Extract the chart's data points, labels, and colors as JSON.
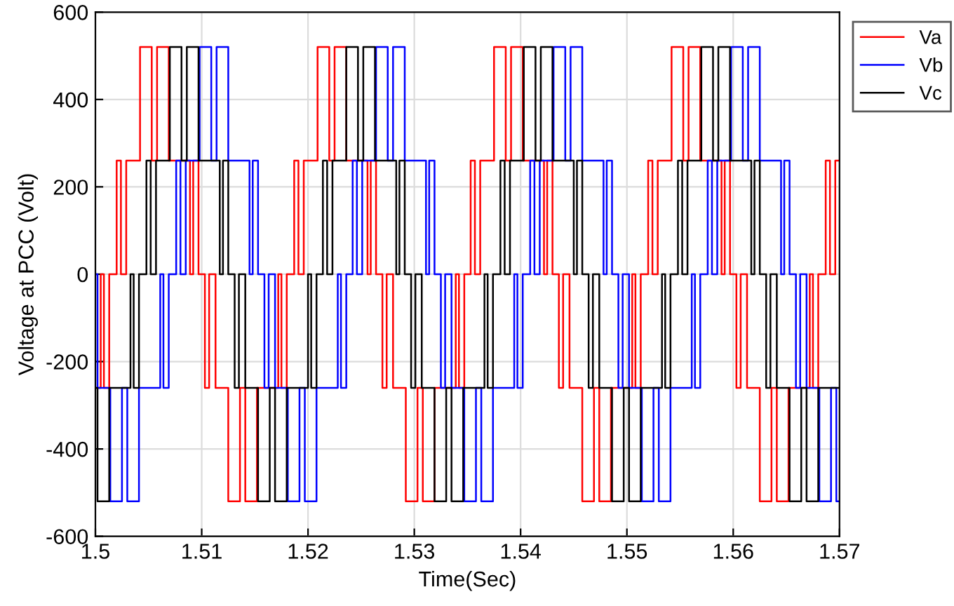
{
  "chart_data": {
    "type": "step",
    "xlabel": "Time(Sec)",
    "ylabel": "Voltage at PCC (Volt)",
    "xlim": [
      1.5,
      1.57
    ],
    "xticks": [
      1.5,
      1.51,
      1.52,
      1.53,
      1.54,
      1.55,
      1.56,
      1.57
    ],
    "ylim": [
      -600,
      600
    ],
    "yticks": [
      -600,
      -400,
      -200,
      0,
      200,
      400,
      600
    ],
    "grid": true,
    "legend": "top right",
    "line_style": "solid",
    "marker": "none",
    "series": [
      {
        "name": "Va",
        "color": "#ff0000",
        "x": [
          1.5,
          1.5005,
          1.5008,
          1.5013,
          1.502,
          1.5024,
          1.5029,
          1.5042,
          1.5053,
          1.5058,
          1.5069,
          1.5089,
          1.5092,
          1.5097,
          1.5103,
          1.5107,
          1.5113,
          1.5125,
          1.5136,
          1.5141,
          1.5152,
          1.5172,
          1.5175,
          1.518,
          1.5187,
          1.5191,
          1.5196,
          1.5209,
          1.522,
          1.5225,
          1.5236,
          1.5256,
          1.5259,
          1.5264,
          1.527,
          1.5274,
          1.528,
          1.5292,
          1.5303,
          1.5308,
          1.5319,
          1.5339,
          1.5342,
          1.5347,
          1.5353,
          1.5357,
          1.5362,
          1.5375,
          1.5386,
          1.5391,
          1.5402,
          1.5422,
          1.5425,
          1.543,
          1.5436,
          1.544,
          1.5446,
          1.5458,
          1.5469,
          1.5474,
          1.5485,
          1.5505,
          1.5508,
          1.5513,
          1.552,
          1.5524,
          1.5529,
          1.5542,
          1.5553,
          1.5558,
          1.5569,
          1.5589,
          1.5592,
          1.5597,
          1.5603,
          1.5607,
          1.5613,
          1.5625,
          1.5636,
          1.5641,
          1.5652,
          1.5672,
          1.5675,
          1.568,
          1.5687,
          1.5691,
          1.5696,
          1.57
        ],
        "values": [
          -260,
          0,
          -260,
          0,
          260,
          0,
          260,
          520,
          260,
          520,
          260,
          0,
          260,
          0,
          -260,
          0,
          -260,
          -520,
          -260,
          -520,
          -260,
          0,
          -260,
          0,
          260,
          0,
          260,
          520,
          260,
          520,
          260,
          0,
          260,
          0,
          -260,
          0,
          -260,
          -520,
          -260,
          -520,
          -260,
          0,
          -260,
          0,
          260,
          0,
          260,
          520,
          260,
          520,
          260,
          0,
          260,
          0,
          -260,
          0,
          -260,
          -520,
          -260,
          -520,
          -260,
          0,
          -260,
          0,
          260,
          0,
          260,
          520,
          260,
          520,
          260,
          0,
          260,
          0,
          -260,
          0,
          -260,
          -520,
          -260,
          -520,
          -260,
          0,
          -260,
          0,
          260,
          0,
          260,
          260
        ]
      },
      {
        "name": "Vb",
        "color": "#0000ff",
        "x": [
          1.5,
          1.5002,
          1.5014,
          1.5025,
          1.503,
          1.5041,
          1.5061,
          1.5064,
          1.5069,
          1.5076,
          1.508,
          1.5085,
          1.5098,
          1.5109,
          1.5114,
          1.5125,
          1.5145,
          1.5148,
          1.5153,
          1.5159,
          1.5163,
          1.5169,
          1.5181,
          1.5192,
          1.5197,
          1.5208,
          1.5228,
          1.5231,
          1.5236,
          1.5242,
          1.5246,
          1.5251,
          1.5264,
          1.5275,
          1.528,
          1.5291,
          1.5311,
          1.5314,
          1.5319,
          1.5325,
          1.5329,
          1.5335,
          1.5347,
          1.5358,
          1.5363,
          1.5374,
          1.5394,
          1.5397,
          1.5402,
          1.5409,
          1.5413,
          1.5418,
          1.5431,
          1.5442,
          1.5447,
          1.5458,
          1.5478,
          1.5481,
          1.5486,
          1.5492,
          1.5496,
          1.5502,
          1.5514,
          1.5525,
          1.553,
          1.5541,
          1.5561,
          1.5564,
          1.5569,
          1.5576,
          1.558,
          1.5585,
          1.5598,
          1.5609,
          1.5614,
          1.5625,
          1.5645,
          1.5648,
          1.5653,
          1.5659,
          1.5663,
          1.5669,
          1.5681,
          1.5692,
          1.5697,
          1.57
        ],
        "values": [
          0,
          -260,
          -520,
          -260,
          -520,
          -260,
          0,
          -260,
          0,
          260,
          0,
          260,
          520,
          260,
          520,
          260,
          0,
          260,
          0,
          -260,
          0,
          -260,
          -520,
          -260,
          -520,
          -260,
          0,
          -260,
          0,
          260,
          0,
          260,
          520,
          260,
          520,
          260,
          0,
          260,
          0,
          -260,
          0,
          -260,
          -520,
          -260,
          -520,
          -260,
          0,
          -260,
          0,
          260,
          0,
          260,
          520,
          260,
          520,
          260,
          0,
          260,
          0,
          -260,
          0,
          -260,
          -520,
          -260,
          -520,
          -260,
          0,
          -260,
          0,
          260,
          0,
          260,
          520,
          260,
          520,
          260,
          0,
          260,
          0,
          -260,
          0,
          -260,
          -520,
          -260,
          -520,
          -520
        ]
      },
      {
        "name": "Vc",
        "color": "#000000",
        "x": [
          1.5,
          1.5002,
          1.5013,
          1.5033,
          1.5036,
          1.5041,
          1.5048,
          1.5052,
          1.5057,
          1.507,
          1.5081,
          1.5086,
          1.5097,
          1.5117,
          1.512,
          1.5125,
          1.5131,
          1.5135,
          1.5141,
          1.5153,
          1.5164,
          1.5169,
          1.518,
          1.52,
          1.5203,
          1.5208,
          1.5214,
          1.5218,
          1.5223,
          1.5236,
          1.5247,
          1.5252,
          1.5263,
          1.5283,
          1.5286,
          1.5291,
          1.5297,
          1.5301,
          1.5307,
          1.5319,
          1.533,
          1.5335,
          1.5346,
          1.5366,
          1.5369,
          1.5374,
          1.5381,
          1.5385,
          1.539,
          1.5403,
          1.5414,
          1.5419,
          1.543,
          1.545,
          1.5453,
          1.5458,
          1.5464,
          1.5468,
          1.5474,
          1.5486,
          1.5497,
          1.5502,
          1.5513,
          1.5533,
          1.5536,
          1.5541,
          1.5548,
          1.5552,
          1.5557,
          1.557,
          1.5581,
          1.5586,
          1.5597,
          1.5617,
          1.562,
          1.5625,
          1.5631,
          1.5635,
          1.5641,
          1.5653,
          1.5664,
          1.5669,
          1.568,
          1.57
        ],
        "values": [
          -260,
          -520,
          -260,
          0,
          -260,
          0,
          260,
          0,
          260,
          520,
          260,
          520,
          260,
          0,
          260,
          0,
          -260,
          0,
          -260,
          -520,
          -260,
          -520,
          -260,
          0,
          -260,
          0,
          260,
          0,
          260,
          520,
          260,
          520,
          260,
          0,
          260,
          0,
          -260,
          0,
          -260,
          -520,
          -260,
          -520,
          -260,
          0,
          -260,
          0,
          260,
          0,
          260,
          520,
          260,
          520,
          260,
          0,
          260,
          0,
          -260,
          0,
          -260,
          -520,
          -260,
          -520,
          -260,
          0,
          -260,
          0,
          260,
          0,
          260,
          520,
          260,
          520,
          260,
          0,
          260,
          0,
          -260,
          0,
          -260,
          -520,
          -260,
          -520,
          -260,
          -260
        ]
      }
    ]
  }
}
